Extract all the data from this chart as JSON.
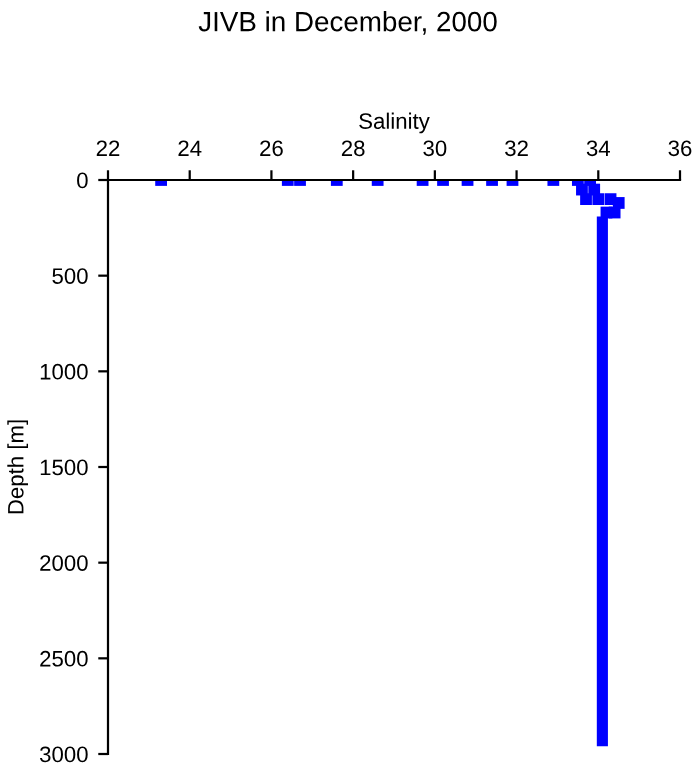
{
  "chart_data": {
    "type": "scatter",
    "title": "JIVB in December, 2000",
    "xlabel": "Salinity",
    "ylabel": "Depth [m]",
    "x": [
      23.3,
      26.4,
      26.7,
      27.6,
      28.6,
      29.7,
      30.2,
      30.8,
      31.4,
      31.9,
      32.9,
      33.5,
      33.8,
      33.6,
      33.9,
      33.7,
      34.0,
      34.3,
      34.5,
      34.2,
      34.4
    ],
    "series": [
      {
        "color": "#0000ff",
        "values": [
          0,
          0,
          0,
          0,
          0,
          0,
          0,
          0,
          0,
          0,
          0,
          0,
          0,
          50,
          50,
          100,
          100,
          100,
          120,
          170,
          170
        ]
      },
      {
        "type": "line",
        "marker": "none",
        "color": "#0000ff",
        "x": [
          34.1,
          34.1
        ],
        "values": [
          220,
          2930
        ]
      }
    ],
    "marker": "square",
    "xlim": [
      22,
      36
    ],
    "ylim": [
      3000,
      0
    ],
    "xticks": [
      22,
      24,
      26,
      28,
      30,
      32,
      34,
      36
    ],
    "yticks": [
      0,
      500,
      1000,
      1500,
      2000,
      2500,
      3000
    ],
    "grid": false,
    "legend": false
  }
}
